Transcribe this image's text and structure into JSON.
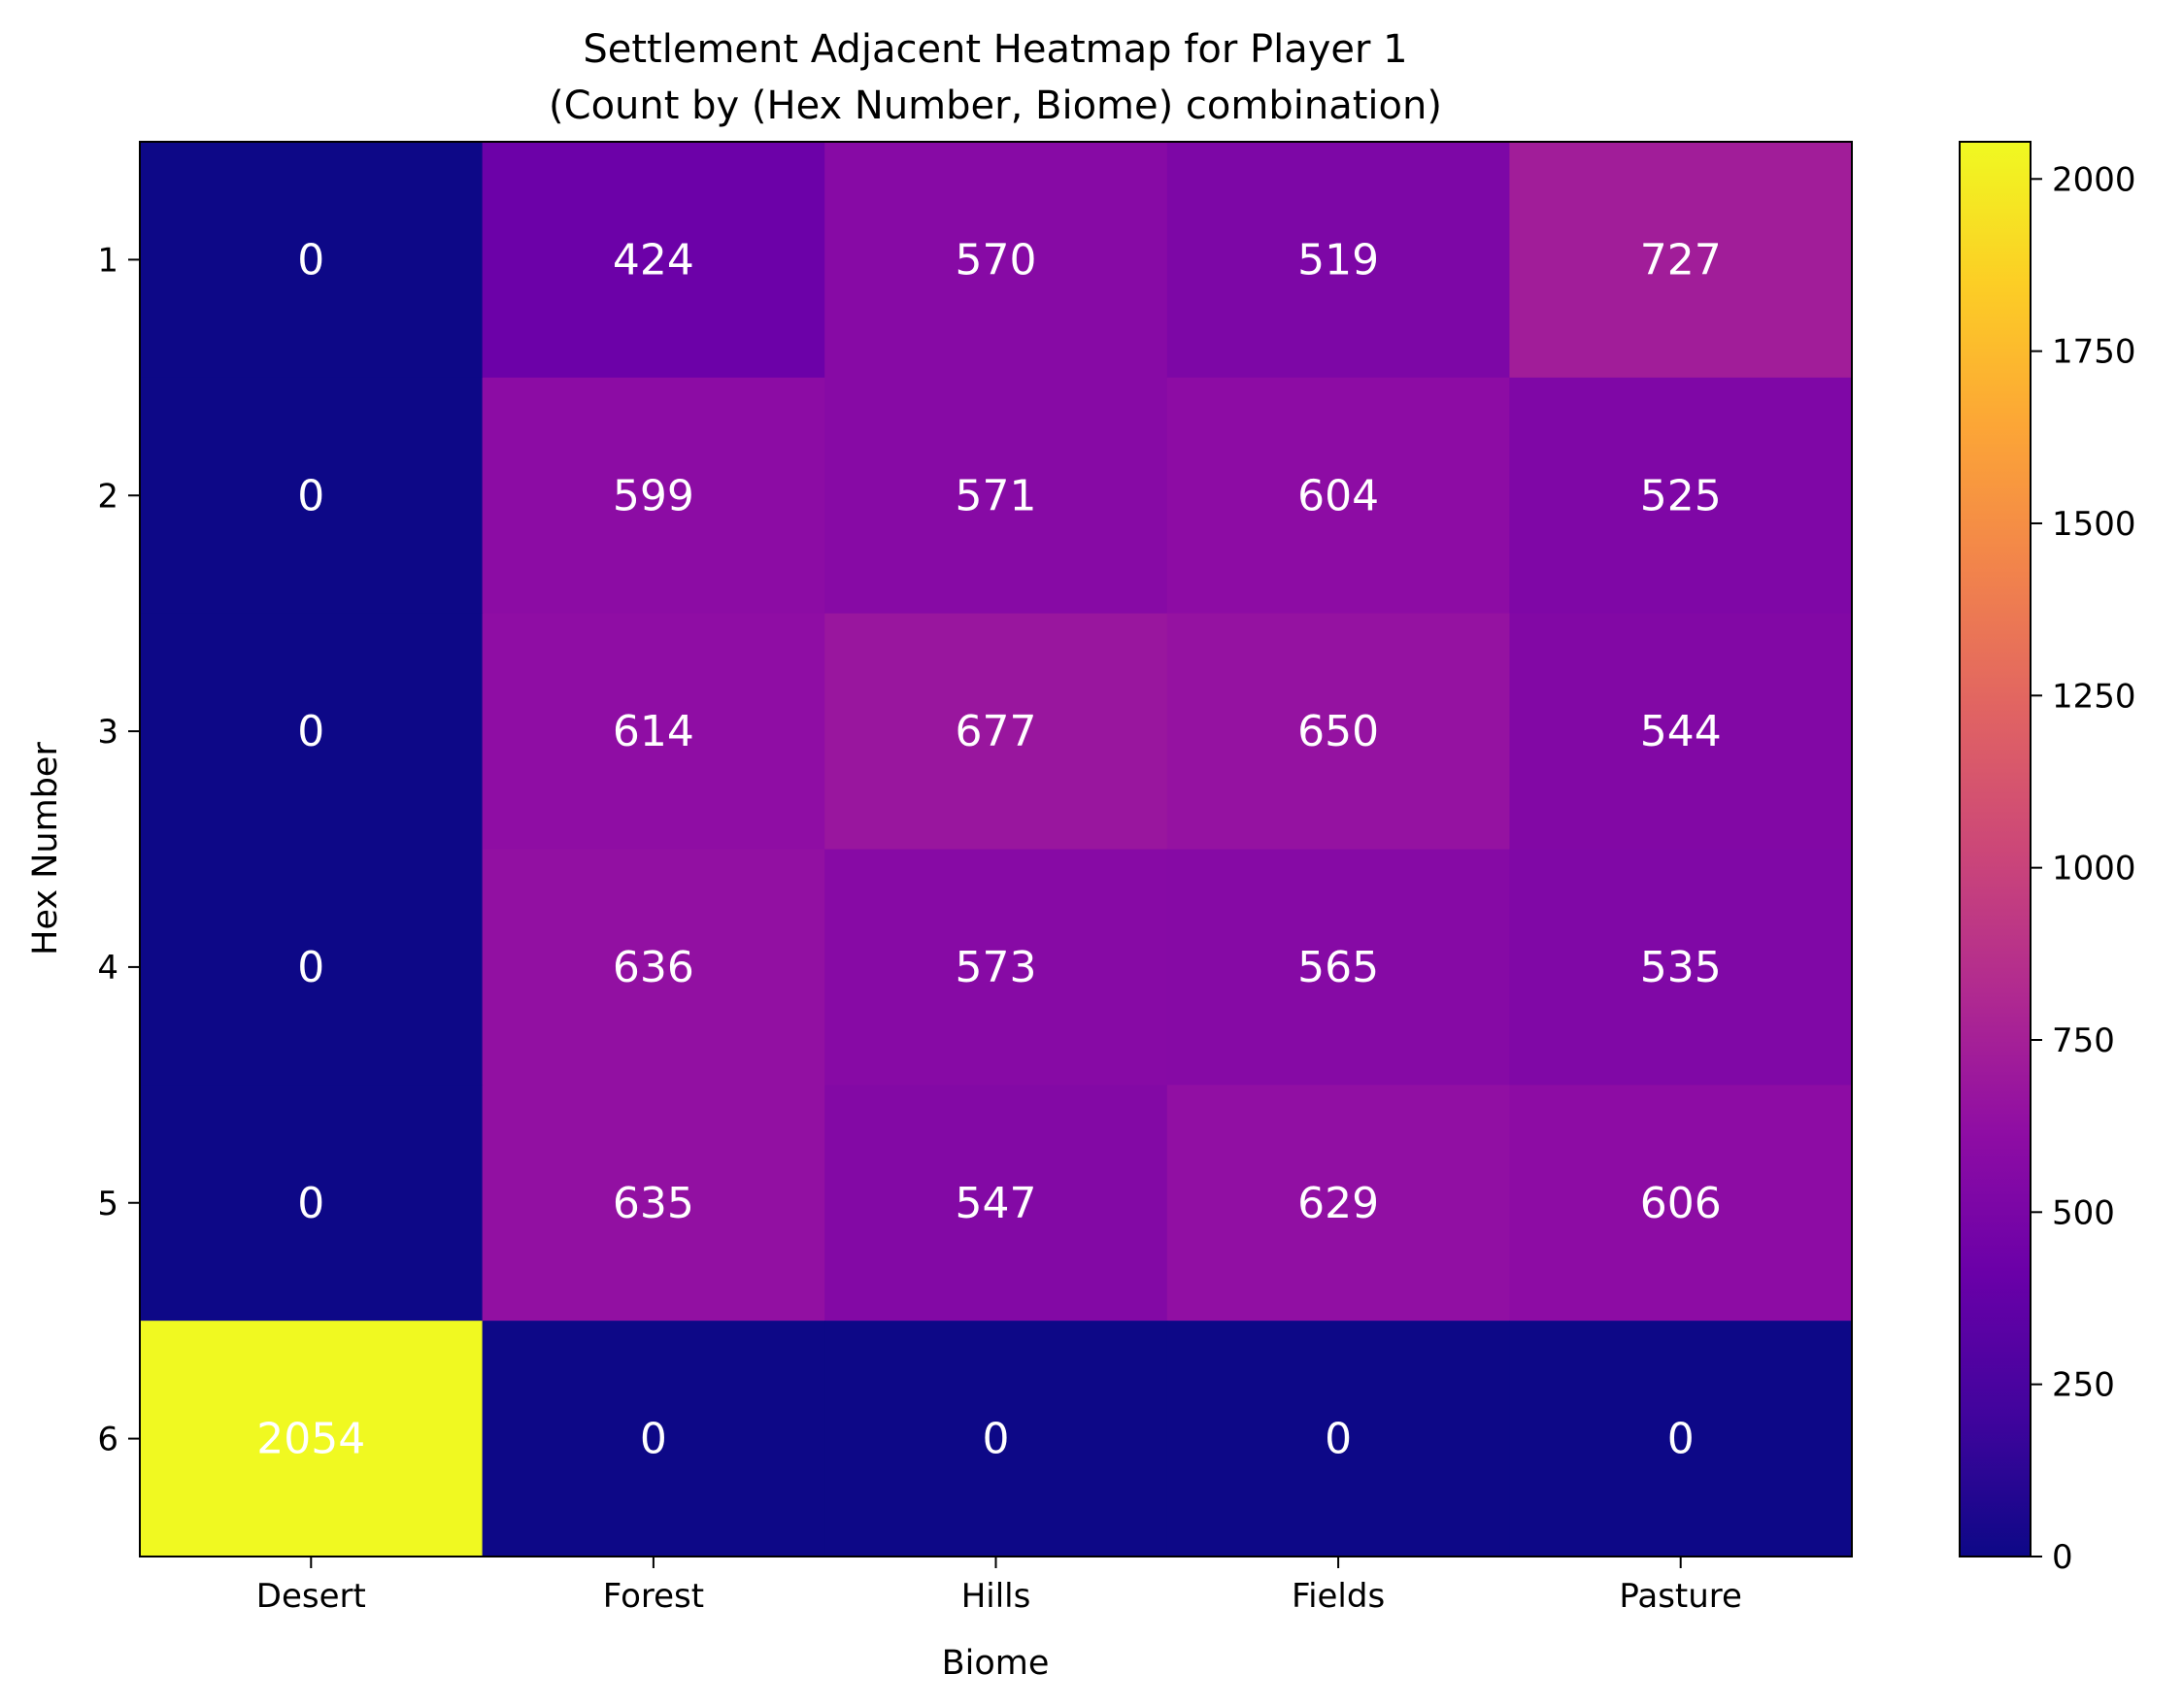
{
  "chart_data": {
    "type": "heatmap",
    "title": "Settlement Adjacent Heatmap for Player 1",
    "subtitle": "(Count by (Hex Number, Biome) combination)",
    "xlabel": "Biome",
    "ylabel": "Hex Number",
    "x_categories": [
      "Desert",
      "Forest",
      "Hills",
      "Fields",
      "Pasture"
    ],
    "y_categories": [
      "1",
      "2",
      "3",
      "4",
      "5",
      "6"
    ],
    "values": [
      [
        0,
        424,
        570,
        519,
        727
      ],
      [
        0,
        599,
        571,
        604,
        525
      ],
      [
        0,
        614,
        677,
        650,
        544
      ],
      [
        0,
        636,
        573,
        565,
        535
      ],
      [
        0,
        635,
        547,
        629,
        606
      ],
      [
        2054,
        0,
        0,
        0,
        0
      ]
    ],
    "colormap": "plasma",
    "colorbar": {
      "range": [
        0,
        2054
      ],
      "ticks": [
        0,
        250,
        500,
        750,
        1000,
        1250,
        1500,
        1750,
        2000
      ],
      "tick_labels": [
        "0",
        "250",
        "500",
        "750",
        "1000",
        "1250",
        "1500",
        "1750",
        "2000"
      ],
      "placement": "right"
    },
    "grid": false,
    "annotations": true,
    "annotation_color": "#ffffff"
  }
}
